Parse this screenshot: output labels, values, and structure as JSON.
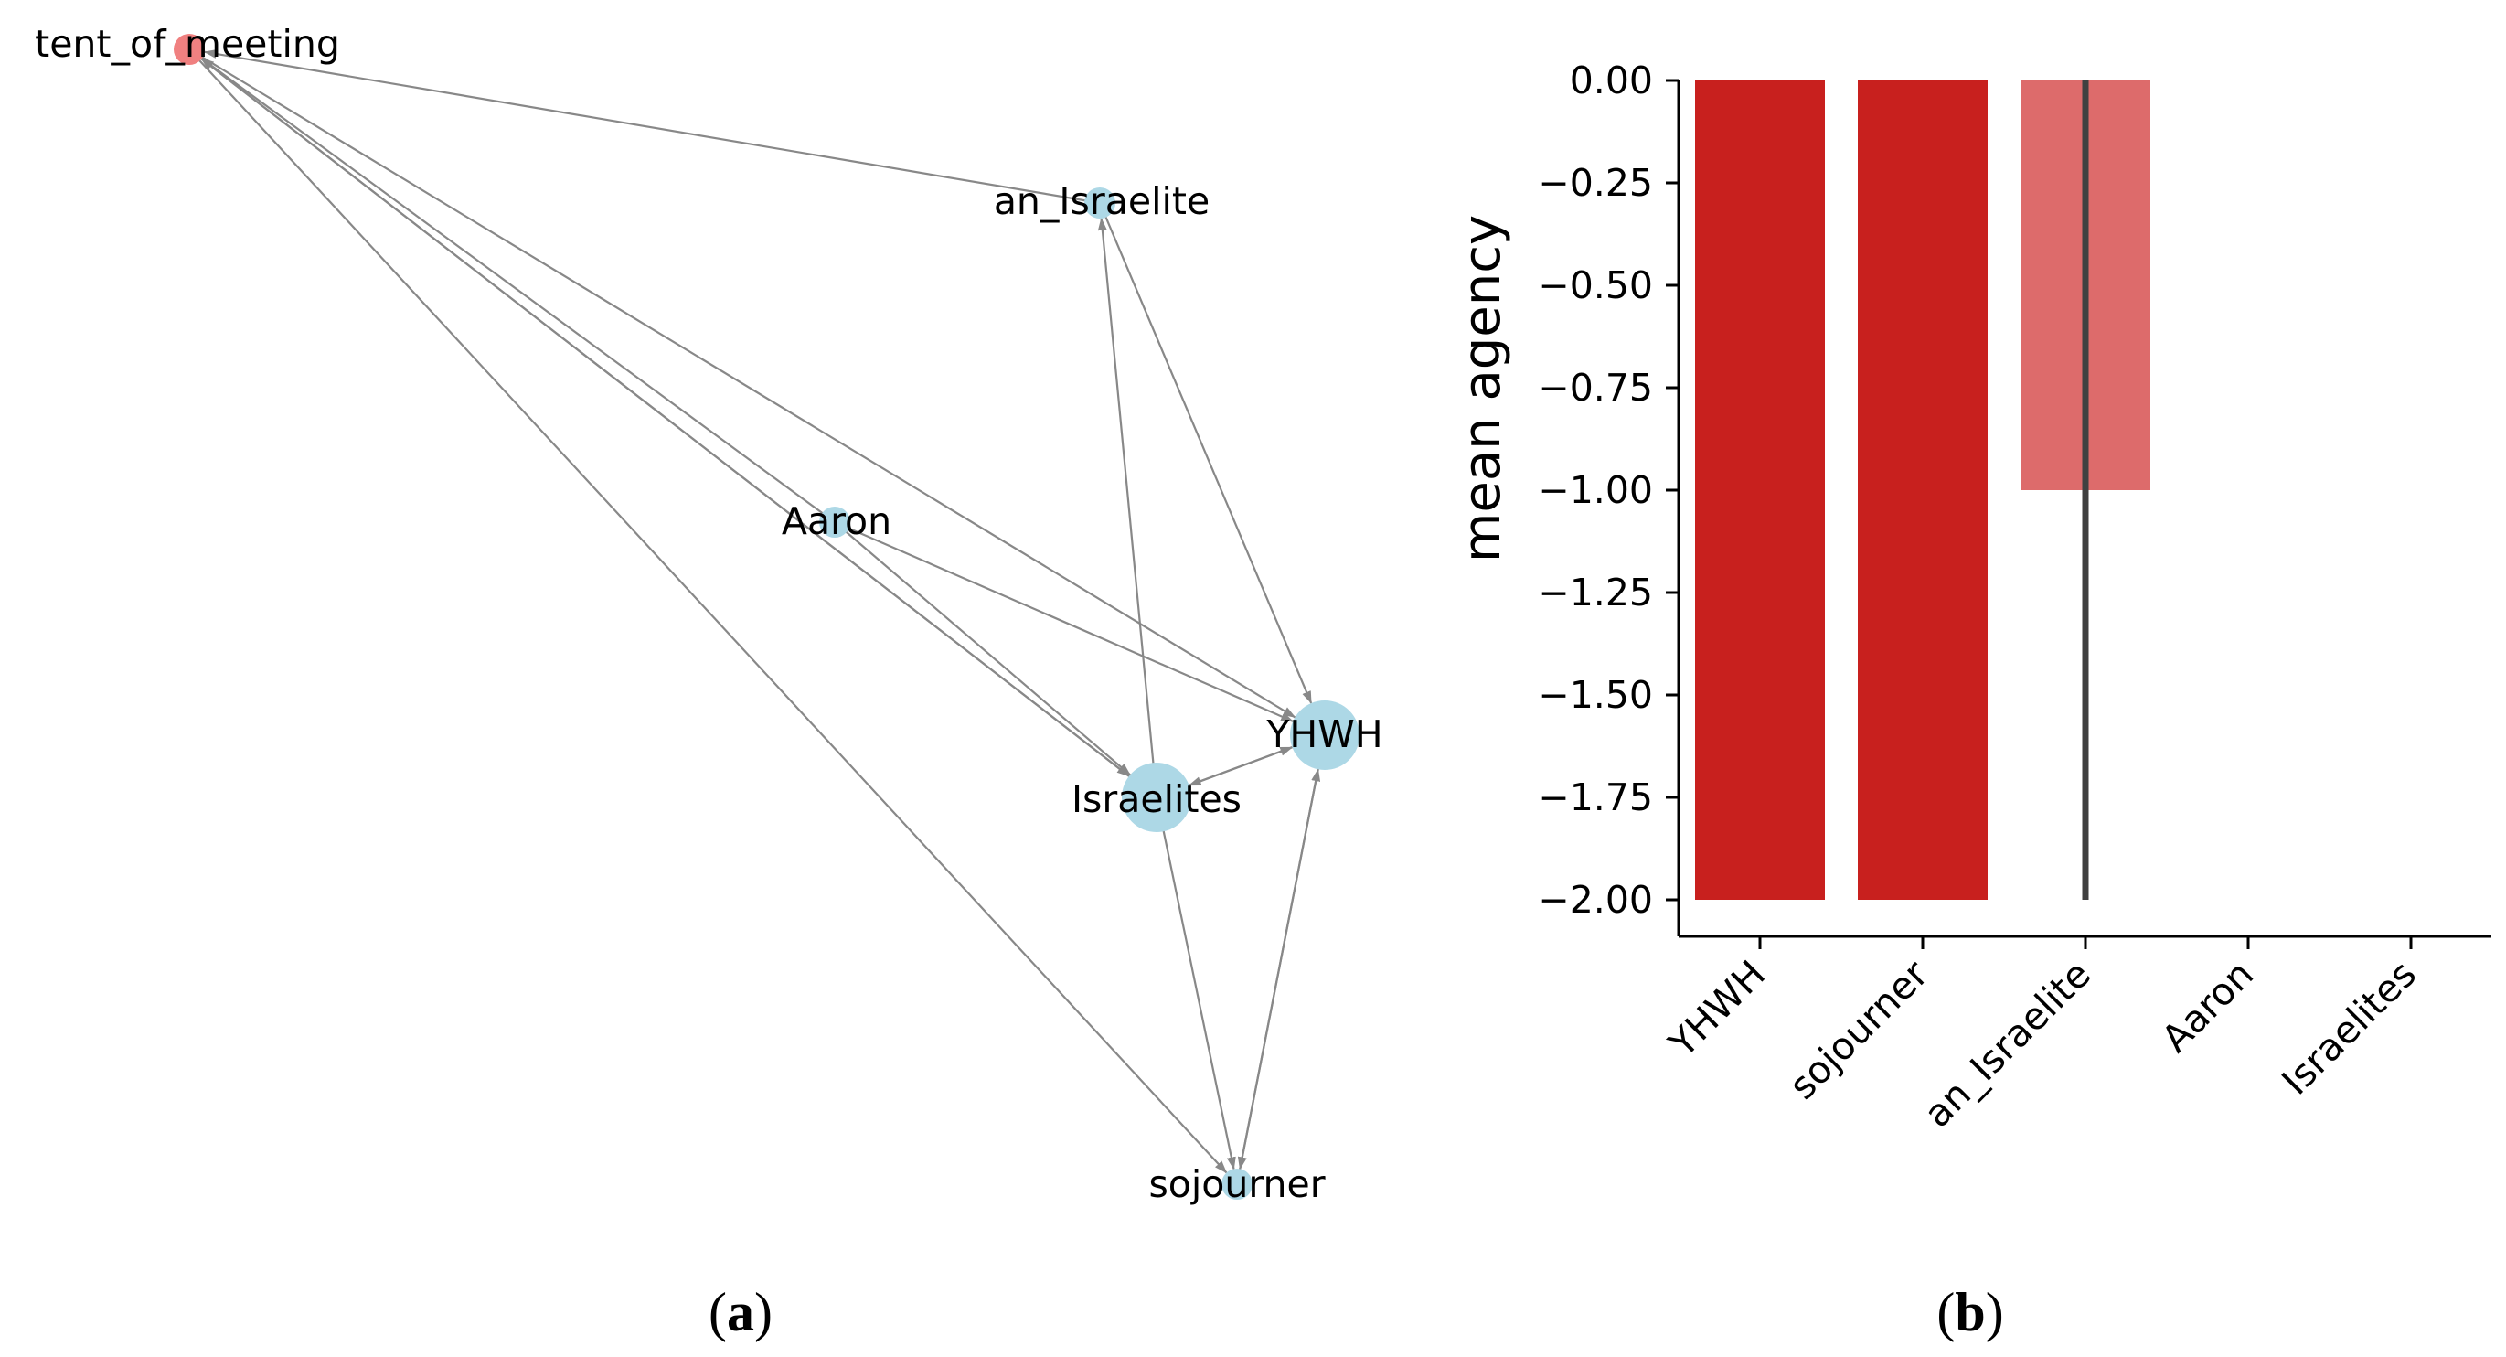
{
  "chart_data": [
    {
      "type": "network",
      "panel_label": {
        "open": "(",
        "letter": "a",
        "close": ")"
      },
      "nodes": [
        {
          "id": "tent_of_meeting",
          "label": "tent_of_meeting",
          "color": "#f08080",
          "size": "small"
        },
        {
          "id": "an_Israelite",
          "label": "an_Israelite",
          "color": "#add8e6",
          "size": "small"
        },
        {
          "id": "Aaron",
          "label": "Aaron",
          "color": "#add8e6",
          "size": "small"
        },
        {
          "id": "YHWH",
          "label": "YHWH",
          "color": "#add8e6",
          "size": "large"
        },
        {
          "id": "Israelites",
          "label": "Israelites",
          "color": "#add8e6",
          "size": "large"
        },
        {
          "id": "sojourner",
          "label": "sojourner",
          "color": "#add8e6",
          "size": "small"
        }
      ],
      "edges": [
        {
          "source": "an_Israelite",
          "target": "tent_of_meeting"
        },
        {
          "source": "Aaron",
          "target": "tent_of_meeting"
        },
        {
          "source": "Israelites",
          "target": "tent_of_meeting"
        },
        {
          "source": "tent_of_meeting",
          "target": "Israelites"
        },
        {
          "source": "tent_of_meeting",
          "target": "YHWH"
        },
        {
          "source": "tent_of_meeting",
          "target": "sojourner"
        },
        {
          "source": "an_Israelite",
          "target": "YHWH"
        },
        {
          "source": "Israelites",
          "target": "an_Israelite"
        },
        {
          "source": "Aaron",
          "target": "YHWH"
        },
        {
          "source": "Aaron",
          "target": "Israelites"
        },
        {
          "source": "Israelites",
          "target": "YHWH"
        },
        {
          "source": "YHWH",
          "target": "Israelites"
        },
        {
          "source": "Israelites",
          "target": "sojourner"
        },
        {
          "source": "YHWH",
          "target": "sojourner"
        },
        {
          "source": "sojourner",
          "target": "YHWH"
        }
      ],
      "edge_color": "#888888"
    },
    {
      "type": "bar",
      "panel_label": {
        "open": "(",
        "letter": "b",
        "close": ")"
      },
      "categories": [
        "YHWH",
        "sojourner",
        "an_Israelite",
        "Aaron",
        "Israelites"
      ],
      "values": [
        -2.0,
        -2.0,
        -1.0,
        0.0,
        0.0
      ],
      "error_bars": [
        {
          "category": "YHWH",
          "low": -2.0,
          "high": -2.0
        },
        {
          "category": "sojourner",
          "low": -2.0,
          "high": -2.0
        },
        {
          "category": "an_Israelite",
          "low": -2.0,
          "high": 0.0
        },
        {
          "category": "Aaron",
          "low": 0.0,
          "high": 0.0
        },
        {
          "category": "Israelites",
          "low": 0.0,
          "high": 0.0
        }
      ],
      "bar_colors": [
        "#c8201e",
        "#c8201e",
        "#dd6b6b",
        "#c8201e",
        "#c8201e"
      ],
      "error_color": "#404040",
      "ylabel": "mean agency",
      "xlabel": "",
      "ylim": [
        -2.1,
        0.0
      ],
      "yticks": [
        0.0,
        -0.25,
        -0.5,
        -0.75,
        -1.0,
        -1.25,
        -1.5,
        -1.75,
        -2.0
      ],
      "ytick_labels": [
        "0.00",
        "−0.25",
        "−0.50",
        "−0.75",
        "−1.00",
        "−1.25",
        "−1.50",
        "−1.75",
        "−2.00"
      ],
      "grid": false
    }
  ]
}
